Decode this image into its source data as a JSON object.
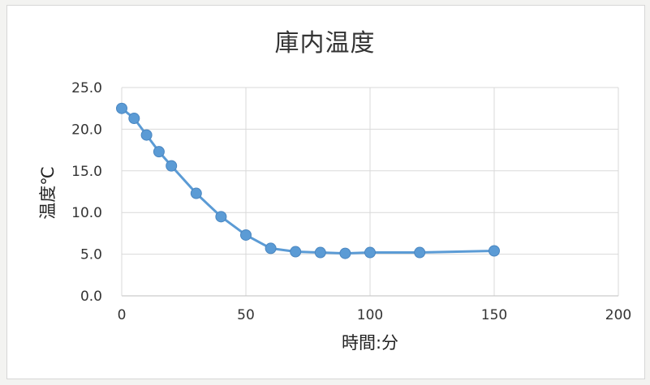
{
  "chart_data": {
    "type": "line",
    "title": "庫内温度",
    "xlabel": "時間:分",
    "ylabel": "温度℃",
    "xlim": [
      0,
      200
    ],
    "ylim": [
      0,
      25
    ],
    "xticks": [
      "0",
      "50",
      "100",
      "150",
      "200"
    ],
    "yticks": [
      "0.0",
      "5.0",
      "10.0",
      "15.0",
      "20.0",
      "25.0"
    ],
    "grid": true,
    "legend": "none",
    "series": [
      {
        "color": "#5b9bd5",
        "x": [
          0,
          5,
          10,
          15,
          20,
          30,
          40,
          50,
          60,
          70,
          80,
          90,
          100,
          120,
          150
        ],
        "y": [
          22.5,
          21.3,
          19.3,
          17.3,
          15.6,
          12.3,
          9.5,
          7.3,
          5.7,
          5.3,
          5.2,
          5.1,
          5.2,
          5.2,
          5.4
        ]
      }
    ]
  }
}
